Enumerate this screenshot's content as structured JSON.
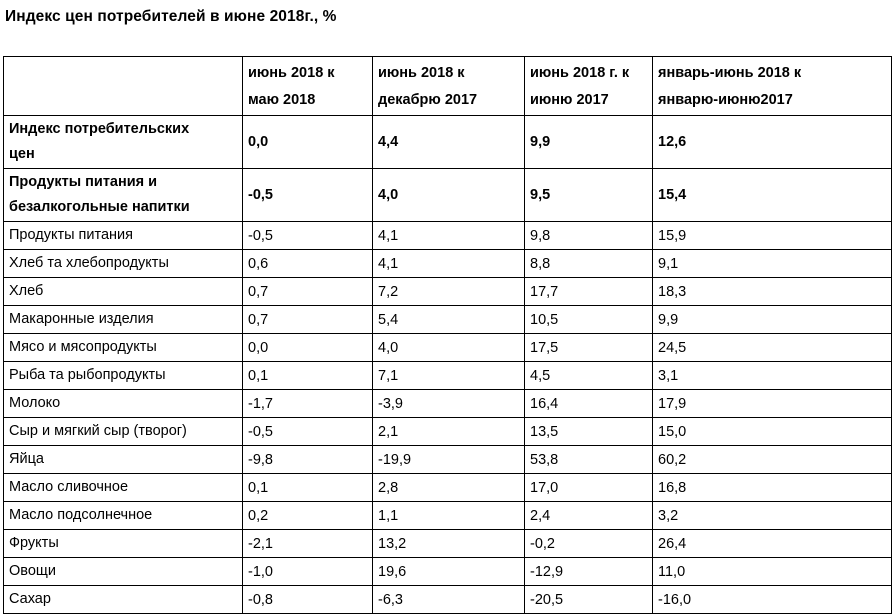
{
  "title": "Индекс цен потребителей в июне 2018г., %",
  "colors": {
    "text": "#000000",
    "border": "#000000",
    "background": "#ffffff"
  },
  "table": {
    "headers": [
      "",
      "июнь 2018 к\nмаю 2018",
      "июнь 2018 к\nдекабрю 2017",
      "июнь 2018 г. к\nиюню 2017",
      "январь-июнь 2018 к\nянварю-июню2017"
    ],
    "rows": [
      {
        "label": "Индекс потребительских\nцен",
        "values": [
          "0,0",
          "4,4",
          "9,9",
          "12,6"
        ],
        "bold": true
      },
      {
        "label": "Продукты питания и\nбезалкогольные напитки",
        "values": [
          "-0,5",
          "4,0",
          "9,5",
          "15,4"
        ],
        "bold": true
      },
      {
        "label": "Продукты питания",
        "values": [
          "-0,5",
          "4,1",
          "9,8",
          "15,9"
        ],
        "bold": false
      },
      {
        "label": "Хлеб та хлебопродукты",
        "values": [
          "0,6",
          "4,1",
          "8,8",
          "9,1"
        ],
        "bold": false
      },
      {
        "label": "Хлеб",
        "values": [
          "0,7",
          "7,2",
          "17,7",
          "18,3"
        ],
        "bold": false
      },
      {
        "label": "Макаронные изделия",
        "values": [
          "0,7",
          "5,4",
          "10,5",
          "9,9"
        ],
        "bold": false
      },
      {
        "label": "Мясо и мясопродукты",
        "values": [
          "0,0",
          "4,0",
          "17,5",
          "24,5"
        ],
        "bold": false
      },
      {
        "label": "Рыба та рыбопродукты",
        "values": [
          "0,1",
          "7,1",
          "4,5",
          "3,1"
        ],
        "bold": false
      },
      {
        "label": "Молоко",
        "values": [
          "-1,7",
          "-3,9",
          "16,4",
          "17,9"
        ],
        "bold": false
      },
      {
        "label": "Сыр и мягкий сыр (творог)",
        "values": [
          "-0,5",
          "2,1",
          "13,5",
          "15,0"
        ],
        "bold": false
      },
      {
        "label": "Яйца",
        "values": [
          "-9,8",
          "-19,9",
          "53,8",
          "60,2"
        ],
        "bold": false
      },
      {
        "label": "Масло сливочное",
        "values": [
          "0,1",
          "2,8",
          "17,0",
          "16,8"
        ],
        "bold": false
      },
      {
        "label": "Масло подсолнечное",
        "values": [
          "0,2",
          "1,1",
          "2,4",
          "3,2"
        ],
        "bold": false
      },
      {
        "label": "Фрукты",
        "values": [
          "-2,1",
          "13,2",
          "-0,2",
          "26,4"
        ],
        "bold": false
      },
      {
        "label": "Овощи",
        "values": [
          "-1,0",
          "19,6",
          "-12,9",
          "11,0"
        ],
        "bold": false
      },
      {
        "label": "Сахар",
        "values": [
          "-0,8",
          "-6,3",
          "-20,5",
          "-16,0"
        ],
        "bold": false
      }
    ]
  }
}
